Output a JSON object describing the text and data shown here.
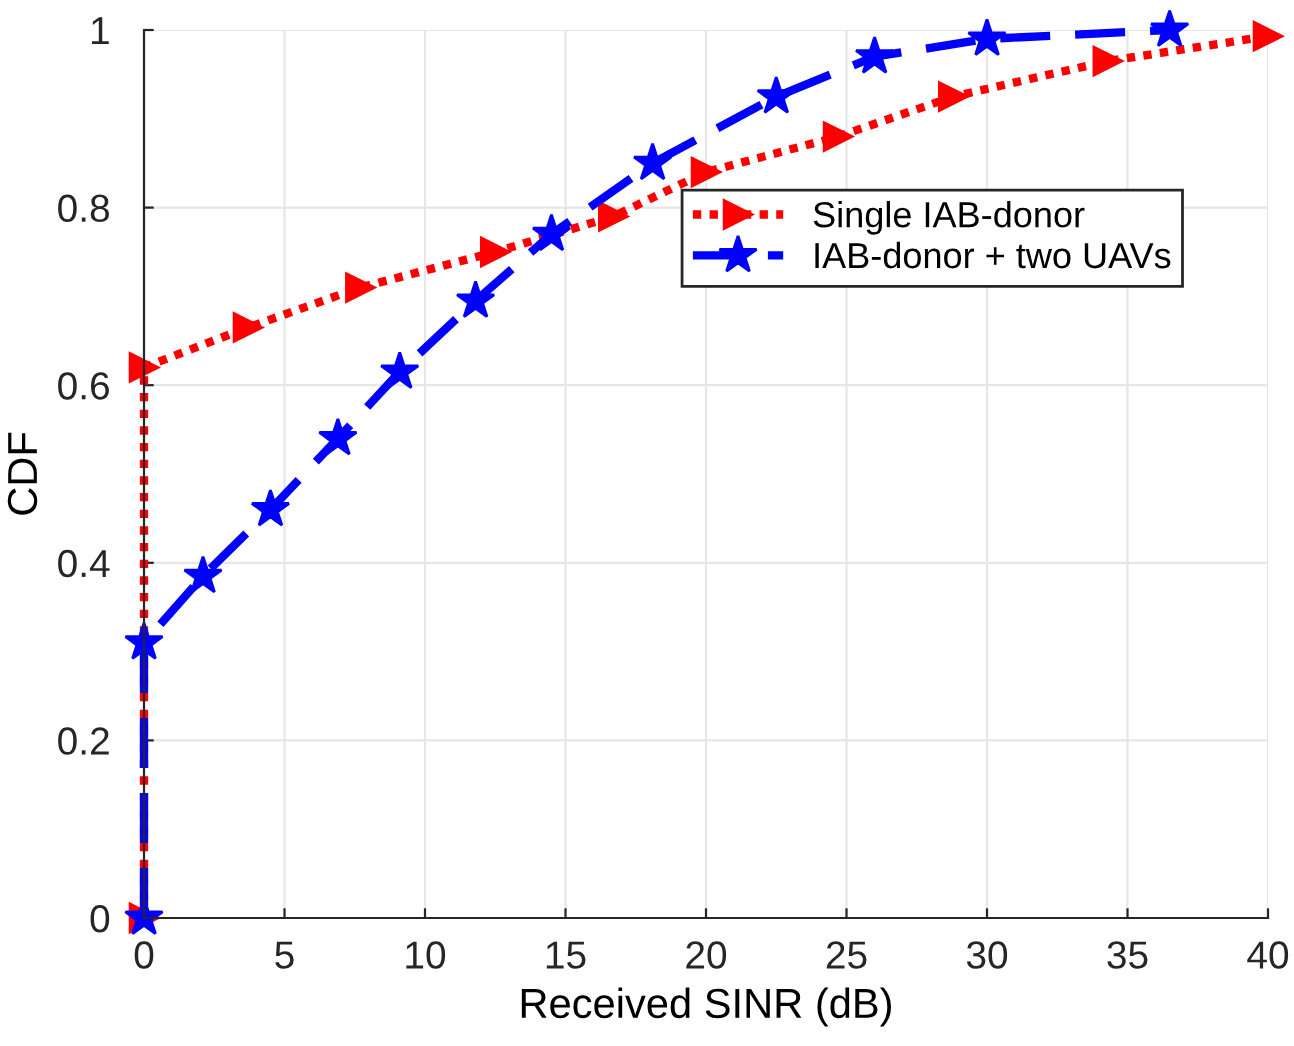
{
  "chart_data": {
    "type": "line",
    "xlabel": "Received SINR (dB)",
    "ylabel": "CDF",
    "xlim": [
      0,
      40
    ],
    "xticks": [
      0,
      5,
      10,
      15,
      20,
      25,
      30,
      35,
      40
    ],
    "ylim": [
      0,
      1
    ],
    "yticks": [
      0,
      0.2,
      0.4,
      0.6,
      0.8,
      1
    ],
    "grid": true,
    "legend": "top right",
    "series": [
      {
        "name": "Single IAB-donor",
        "color": "#ff0000",
        "marker": "triangle",
        "line_style": "dotted",
        "x": [
          0,
          0,
          3.7,
          7.7,
          12.5,
          16.7,
          20,
          24.7,
          28.8,
          34.3,
          40
        ],
        "values": [
          0,
          0.62,
          0.665,
          0.71,
          0.75,
          0.79,
          0.84,
          0.88,
          0.925,
          0.965,
          0.993
        ]
      },
      {
        "name": "IAB-donor + two UAVs",
        "color": "#0000ff",
        "marker": "star",
        "line_style": "dashed",
        "x": [
          0,
          0,
          2.1,
          4.5,
          6.9,
          9.1,
          11.8,
          14.5,
          18.1,
          22.5,
          26,
          30,
          36.5
        ],
        "values": [
          0,
          0.31,
          0.385,
          0.46,
          0.54,
          0.615,
          0.695,
          0.77,
          0.85,
          0.925,
          0.97,
          0.99,
          1.0
        ]
      }
    ]
  }
}
